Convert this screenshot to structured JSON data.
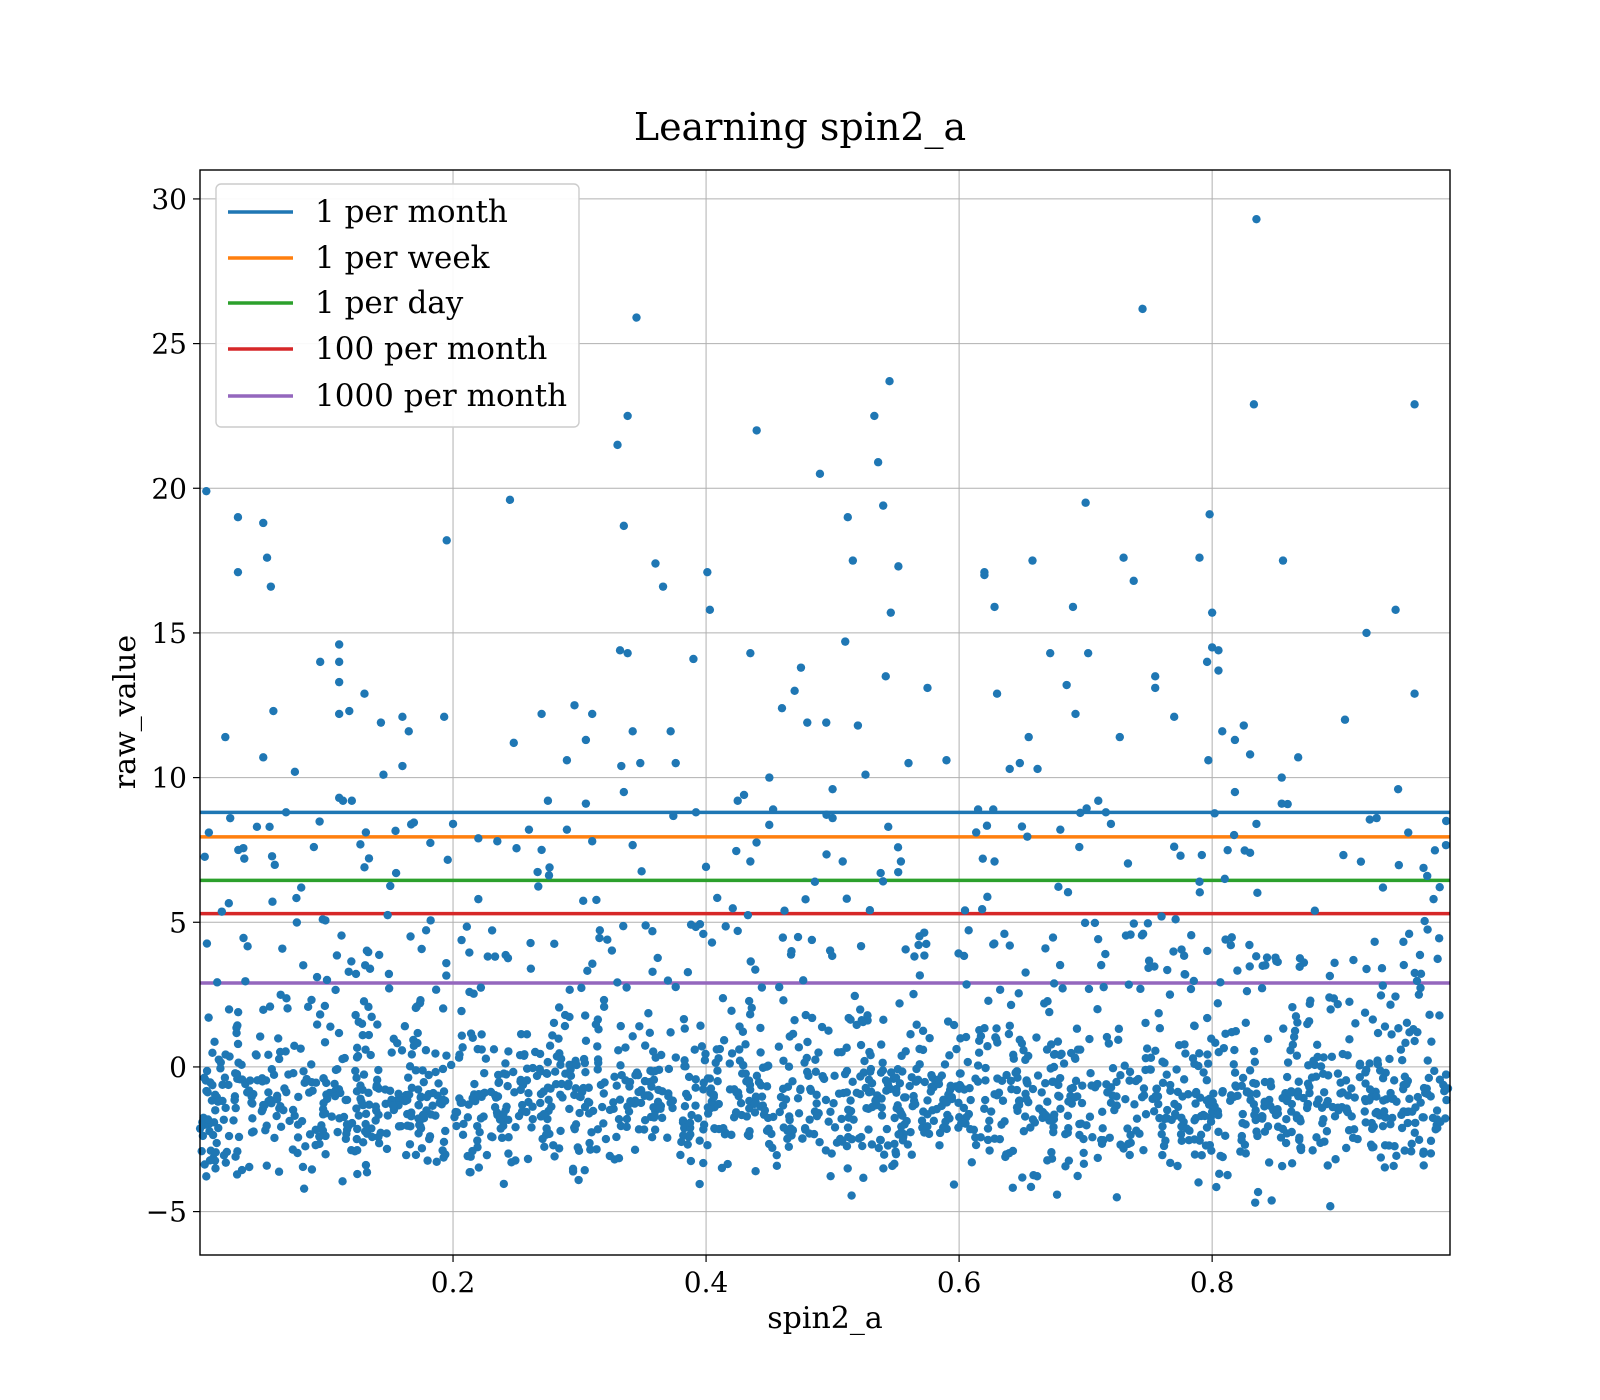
{
  "chart_data": {
    "type": "scatter",
    "title": "Learning spin2_a",
    "xlabel": "spin2_a",
    "ylabel": "raw_value",
    "xlim": [
      0.0,
      0.988
    ],
    "ylim": [
      -6.5,
      31
    ],
    "xticks": [
      {
        "value": 0.2,
        "label": "0.2"
      },
      {
        "value": 0.4,
        "label": "0.4"
      },
      {
        "value": 0.6,
        "label": "0.6"
      },
      {
        "value": 0.8,
        "label": "0.8"
      }
    ],
    "yticks": [
      {
        "value": -5,
        "label": "−5"
      },
      {
        "value": 0,
        "label": "0"
      },
      {
        "value": 5,
        "label": "5"
      },
      {
        "value": 10,
        "label": "10"
      },
      {
        "value": 15,
        "label": "15"
      },
      {
        "value": 20,
        "label": "20"
      },
      {
        "value": 25,
        "label": "25"
      },
      {
        "value": 30,
        "label": "30"
      }
    ],
    "grid": true,
    "legend_position": "upper-left",
    "point_color": "#1f77b4",
    "point_count_dense": 1900,
    "hlines": [
      {
        "name": "1 per month",
        "y": 8.8,
        "color": "#1f77b4"
      },
      {
        "name": "1 per week",
        "y": 7.95,
        "color": "#ff7f0e"
      },
      {
        "name": "1 per day",
        "y": 6.45,
        "color": "#2ca02c"
      },
      {
        "name": "100 per month",
        "y": 5.3,
        "color": "#d62728"
      },
      {
        "name": "1000 per month",
        "y": 2.9,
        "color": "#9467bd"
      }
    ],
    "outliers": [
      [
        0.005,
        19.9
      ],
      [
        0.03,
        19.0
      ],
      [
        0.03,
        17.1
      ],
      [
        0.05,
        18.8
      ],
      [
        0.053,
        17.6
      ],
      [
        0.056,
        16.6
      ],
      [
        0.02,
        11.4
      ],
      [
        0.05,
        10.7
      ],
      [
        0.058,
        12.3
      ],
      [
        0.075,
        10.2
      ],
      [
        0.068,
        8.8
      ],
      [
        0.095,
        14.0
      ],
      [
        0.11,
        14.6
      ],
      [
        0.11,
        14.0
      ],
      [
        0.11,
        13.3
      ],
      [
        0.11,
        12.2
      ],
      [
        0.118,
        12.3
      ],
      [
        0.13,
        12.9
      ],
      [
        0.143,
        11.9
      ],
      [
        0.145,
        10.1
      ],
      [
        0.16,
        10.4
      ],
      [
        0.16,
        12.1
      ],
      [
        0.165,
        11.6
      ],
      [
        0.195,
        18.2
      ],
      [
        0.193,
        12.1
      ],
      [
        0.11,
        9.3
      ],
      [
        0.113,
        9.2
      ],
      [
        0.12,
        9.2
      ],
      [
        0.09,
        7.6
      ],
      [
        0.055,
        8.3
      ],
      [
        0.045,
        8.3
      ],
      [
        0.007,
        8.1
      ],
      [
        0.035,
        7.2
      ],
      [
        0.08,
        6.2
      ],
      [
        0.2,
        8.4
      ],
      [
        0.245,
        19.6
      ],
      [
        0.248,
        11.2
      ],
      [
        0.29,
        10.6
      ],
      [
        0.296,
        12.5
      ],
      [
        0.305,
        11.3
      ],
      [
        0.31,
        12.2
      ],
      [
        0.27,
        12.2
      ],
      [
        0.33,
        21.5
      ],
      [
        0.338,
        22.5
      ],
      [
        0.345,
        25.9
      ],
      [
        0.335,
        18.7
      ],
      [
        0.332,
        14.4
      ],
      [
        0.338,
        14.3
      ],
      [
        0.342,
        11.6
      ],
      [
        0.348,
        10.5
      ],
      [
        0.333,
        10.4
      ],
      [
        0.335,
        9.5
      ],
      [
        0.36,
        17.4
      ],
      [
        0.366,
        16.6
      ],
      [
        0.372,
        11.6
      ],
      [
        0.376,
        10.5
      ],
      [
        0.39,
        14.1
      ],
      [
        0.401,
        17.1
      ],
      [
        0.403,
        15.8
      ],
      [
        0.392,
        8.8
      ],
      [
        0.435,
        14.3
      ],
      [
        0.44,
        22.0
      ],
      [
        0.45,
        10.0
      ],
      [
        0.46,
        12.4
      ],
      [
        0.47,
        13.0
      ],
      [
        0.475,
        13.8
      ],
      [
        0.48,
        11.9
      ],
      [
        0.49,
        20.5
      ],
      [
        0.495,
        11.9
      ],
      [
        0.5,
        9.6
      ],
      [
        0.51,
        14.7
      ],
      [
        0.512,
        19.0
      ],
      [
        0.516,
        17.5
      ],
      [
        0.52,
        11.8
      ],
      [
        0.526,
        10.1
      ],
      [
        0.533,
        22.5
      ],
      [
        0.536,
        20.9
      ],
      [
        0.54,
        19.4
      ],
      [
        0.545,
        23.7
      ],
      [
        0.546,
        15.7
      ],
      [
        0.542,
        13.5
      ],
      [
        0.552,
        17.3
      ],
      [
        0.56,
        10.5
      ],
      [
        0.575,
        13.1
      ],
      [
        0.59,
        10.6
      ],
      [
        0.62,
        17.1
      ],
      [
        0.62,
        17.0
      ],
      [
        0.628,
        15.9
      ],
      [
        0.63,
        12.9
      ],
      [
        0.64,
        10.3
      ],
      [
        0.648,
        10.5
      ],
      [
        0.655,
        11.4
      ],
      [
        0.658,
        17.5
      ],
      [
        0.662,
        10.3
      ],
      [
        0.672,
        14.3
      ],
      [
        0.685,
        13.2
      ],
      [
        0.69,
        15.9
      ],
      [
        0.692,
        12.2
      ],
      [
        0.7,
        19.5
      ],
      [
        0.702,
        14.3
      ],
      [
        0.727,
        11.4
      ],
      [
        0.73,
        17.6
      ],
      [
        0.738,
        16.8
      ],
      [
        0.745,
        26.2
      ],
      [
        0.755,
        13.5
      ],
      [
        0.755,
        13.1
      ],
      [
        0.77,
        12.1
      ],
      [
        0.79,
        17.6
      ],
      [
        0.796,
        14.0
      ],
      [
        0.798,
        19.1
      ],
      [
        0.8,
        15.7
      ],
      [
        0.8,
        14.5
      ],
      [
        0.805,
        14.4
      ],
      [
        0.805,
        13.7
      ],
      [
        0.797,
        10.6
      ],
      [
        0.808,
        11.6
      ],
      [
        0.818,
        11.3
      ],
      [
        0.818,
        9.5
      ],
      [
        0.825,
        11.8
      ],
      [
        0.83,
        10.8
      ],
      [
        0.835,
        29.3
      ],
      [
        0.833,
        22.9
      ],
      [
        0.856,
        17.5
      ],
      [
        0.855,
        10.0
      ],
      [
        0.868,
        10.7
      ],
      [
        0.905,
        12.0
      ],
      [
        0.922,
        15.0
      ],
      [
        0.945,
        15.8
      ],
      [
        0.947,
        9.6
      ],
      [
        0.96,
        22.9
      ],
      [
        0.96,
        12.9
      ],
      [
        0.93,
        8.6
      ],
      [
        0.985,
        8.5
      ],
      [
        0.955,
        8.1
      ],
      [
        0.43,
        9.4
      ],
      [
        0.425,
        9.2
      ],
      [
        0.435,
        7.1
      ],
      [
        0.453,
        8.9
      ],
      [
        0.462,
        5.4
      ],
      [
        0.486,
        6.4
      ],
      [
        0.5,
        8.6
      ],
      [
        0.508,
        7.1
      ],
      [
        0.538,
        6.7
      ],
      [
        0.544,
        8.3
      ],
      [
        0.554,
        7.1
      ],
      [
        0.615,
        8.9
      ],
      [
        0.627,
        8.9
      ],
      [
        0.628,
        7.1
      ],
      [
        0.68,
        8.2
      ],
      [
        0.695,
        7.6
      ],
      [
        0.71,
        9.2
      ],
      [
        0.716,
        8.8
      ],
      [
        0.72,
        8.4
      ],
      [
        0.76,
        5.2
      ],
      [
        0.775,
        7.3
      ],
      [
        0.83,
        7.4
      ],
      [
        0.835,
        8.4
      ],
      [
        0.81,
        6.5
      ],
      [
        0.79,
        6.4
      ],
      [
        0.855,
        9.1
      ],
      [
        0.935,
        6.2
      ],
      [
        0.97,
        6.6
      ],
      [
        0.975,
        5.8
      ],
      [
        0.275,
        9.2
      ],
      [
        0.27,
        7.5
      ],
      [
        0.26,
        8.2
      ],
      [
        0.31,
        7.8
      ],
      [
        0.29,
        8.2
      ],
      [
        0.305,
        9.1
      ],
      [
        0.235,
        7.8
      ],
      [
        0.22,
        7.9
      ],
      [
        0.13,
        6.9
      ],
      [
        0.155,
        6.7
      ],
      [
        0.22,
        5.8
      ]
    ]
  }
}
